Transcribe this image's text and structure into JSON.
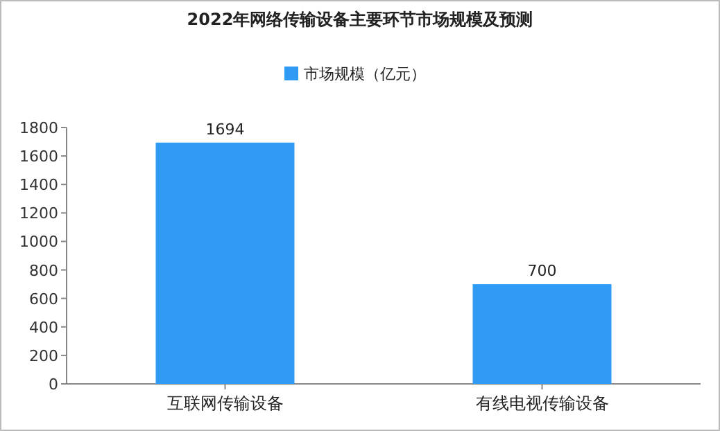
{
  "chart_data": {
    "type": "bar",
    "title": "2022年网络传输设备主要环节市场规模及预测",
    "categories": [
      "互联网传输设备",
      "有线电视传输设备"
    ],
    "series": [
      {
        "name": "市场规模（亿元）",
        "color": "#2f9bf4",
        "values": [
          1694,
          700
        ]
      }
    ],
    "ylim": [
      0,
      1800
    ],
    "yticks": [
      0,
      200,
      400,
      600,
      800,
      1000,
      1200,
      1400,
      1600,
      1800
    ],
    "data_labels": true,
    "legend": "top"
  }
}
